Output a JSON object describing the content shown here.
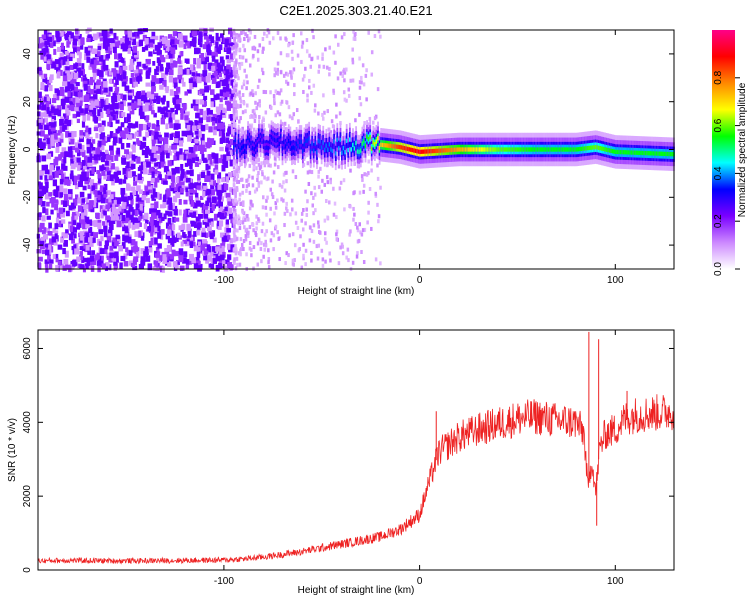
{
  "title": "C2E1.2025.303.21.40.E21",
  "chart_data": [
    {
      "type": "heatmap",
      "xlabel": "Height of straight line (km)",
      "ylabel": "Frequency (Hz)",
      "xlim": [
        -195,
        130
      ],
      "ylim": [
        -50,
        50
      ],
      "xticks": [
        -100,
        0,
        100
      ],
      "yticks": [
        -40,
        -20,
        0,
        20,
        40
      ],
      "colorbar": {
        "label": "Normalized spectral amplitude",
        "range": [
          0,
          1
        ],
        "ticks": [
          0.0,
          0.2,
          0.4,
          0.6,
          0.8
        ],
        "colormap": [
          "#ffffff",
          "#cc88ff",
          "#7a00ff",
          "#0000ff",
          "#00ffff",
          "#00ff00",
          "#ffff00",
          "#ff8800",
          "#ff0000",
          "#ff0088"
        ]
      },
      "ridge": {
        "x": [
          -95,
          -80,
          -60,
          -40,
          -30,
          -25,
          -20,
          -10,
          0,
          20,
          40,
          60,
          80,
          90,
          100,
          130
        ],
        "frequency": [
          1,
          3,
          2,
          1,
          2,
          3,
          2,
          1,
          -1,
          0,
          0,
          0,
          0,
          1,
          -1,
          -2
        ],
        "amplitude": [
          0.35,
          0.3,
          0.35,
          0.4,
          0.5,
          0.6,
          0.7,
          0.85,
          0.9,
          0.75,
          0.6,
          0.55,
          0.55,
          0.6,
          0.55,
          0.55
        ]
      },
      "noise_cutoff_x": -95
    },
    {
      "type": "line",
      "xlabel": "Height of straight line (km)",
      "ylabel": "SNR (10 * v/v)",
      "xlim": [
        -195,
        130
      ],
      "ylim": [
        0,
        6500
      ],
      "xticks": [
        -100,
        0,
        100
      ],
      "yticks": [
        0,
        2000,
        4000,
        6000
      ],
      "color": "#ee2222",
      "series": [
        {
          "x": [
            -195,
            -180,
            -160,
            -140,
            -120,
            -100,
            -90,
            -80,
            -70,
            -60,
            -50,
            -40,
            -30,
            -20,
            -10,
            0,
            5,
            8,
            10,
            15,
            20,
            30,
            40,
            50,
            60,
            70,
            80,
            84,
            86,
            88,
            90,
            92,
            95,
            100,
            105,
            110,
            120,
            130
          ],
          "y": [
            250,
            260,
            250,
            250,
            260,
            270,
            300,
            350,
            420,
            500,
            600,
            700,
            800,
            900,
            1100,
            1500,
            2400,
            2900,
            3200,
            3400,
            3600,
            3800,
            3950,
            4100,
            4150,
            4050,
            4000,
            3700,
            2200,
            3000,
            2100,
            3300,
            3700,
            3800,
            4100,
            4200,
            4250,
            4300
          ]
        }
      ],
      "spikes": [
        {
          "x": 8.5,
          "y": 4300
        },
        {
          "x": 86.5,
          "y": 6450
        },
        {
          "x": 90.5,
          "y": 1200
        },
        {
          "x": 91.5,
          "y": 6250
        },
        {
          "x": 106,
          "y": 4850
        }
      ]
    }
  ]
}
